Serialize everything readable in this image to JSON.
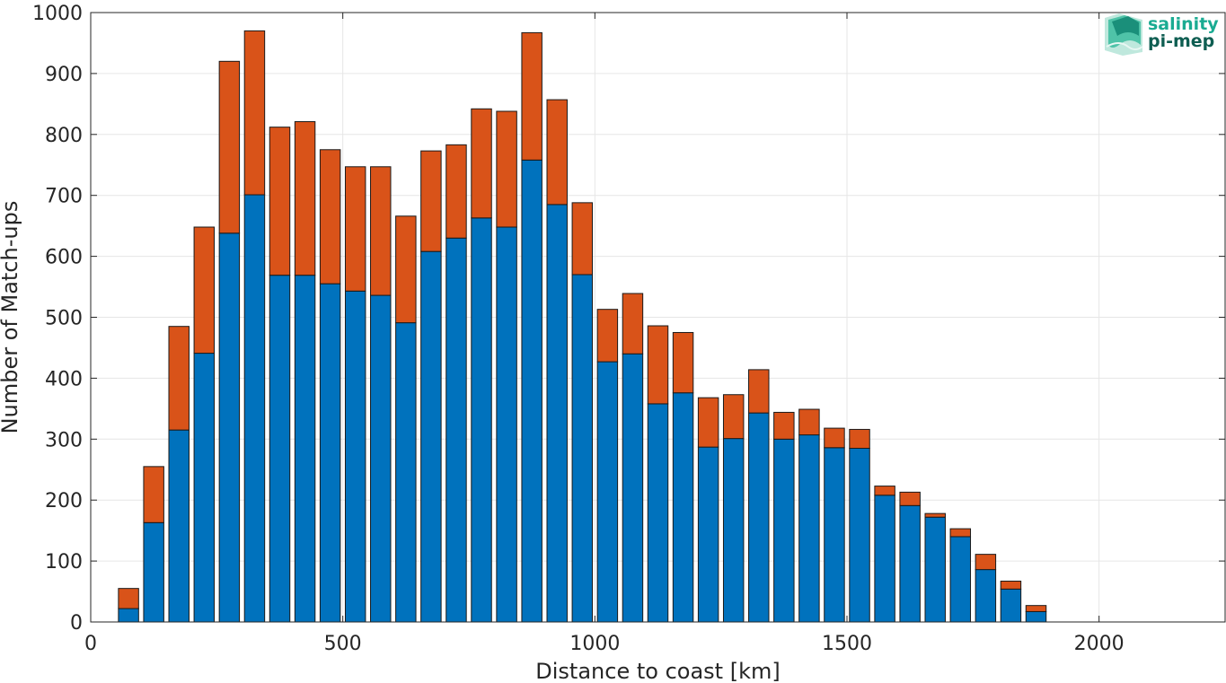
{
  "chart_data": {
    "type": "bar",
    "stacked": true,
    "title": "",
    "xlabel": "Distance to coast [km]",
    "ylabel": "Number of Match-ups",
    "xlim": [
      0,
      2250
    ],
    "ylim": [
      0,
      1000
    ],
    "grid": true,
    "x_ticks": [
      0,
      500,
      1000,
      1500,
      2000
    ],
    "y_ticks": [
      0,
      100,
      200,
      300,
      400,
      500,
      600,
      700,
      800,
      900,
      1000
    ],
    "bar_width": 40,
    "x": [
      75,
      125,
      175,
      225,
      275,
      325,
      375,
      425,
      475,
      525,
      575,
      625,
      675,
      725,
      775,
      825,
      875,
      925,
      975,
      1025,
      1075,
      1125,
      1175,
      1225,
      1275,
      1325,
      1375,
      1425,
      1475,
      1525,
      1575,
      1625,
      1675,
      1725,
      1775,
      1825,
      1875
    ],
    "series": [
      {
        "color": "#0072BD",
        "values": [
          22,
          163,
          315,
          441,
          638,
          701,
          569,
          569,
          555,
          543,
          536,
          491,
          608,
          630,
          663,
          648,
          758,
          685,
          570,
          427,
          440,
          358,
          376,
          287,
          301,
          343,
          300,
          307,
          286,
          285,
          208,
          191,
          172,
          140,
          86,
          54,
          17
        ]
      },
      {
        "color": "#D95319",
        "values": [
          33,
          92,
          170,
          207,
          282,
          269,
          243,
          252,
          220,
          204,
          211,
          175,
          165,
          153,
          179,
          190,
          209,
          172,
          118,
          86,
          99,
          128,
          99,
          81,
          72,
          71,
          44,
          42,
          32,
          31,
          15,
          22,
          6,
          13,
          25,
          13,
          10
        ]
      }
    ]
  },
  "logo": {
    "line1": "salinity",
    "line2": "pi-mep",
    "color1": "#1aab92",
    "color2": "#0f5e52"
  }
}
